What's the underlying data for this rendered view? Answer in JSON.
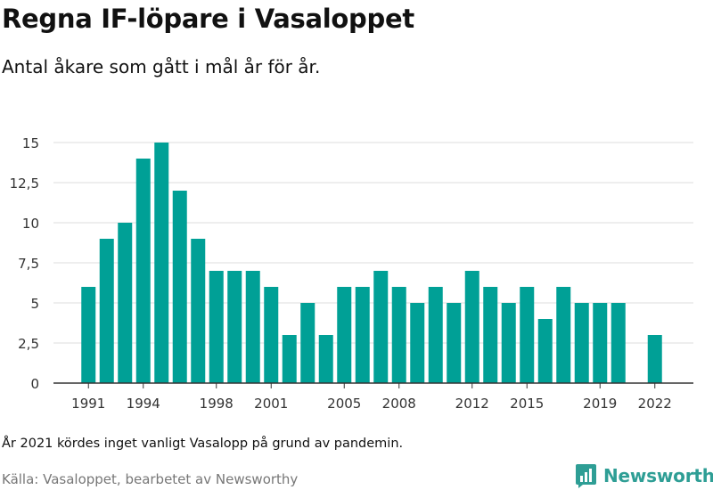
{
  "title": "Regna IF-löpare i Vasaloppet",
  "subtitle": "Antal åkare som gått i mål år för år.",
  "note": "År 2021 kördes inget vanligt Vasalopp på grund av pandemin.",
  "source": "Källa: Vasaloppet, bearbetet av Newsworthy",
  "brand": {
    "name": "Newsworthy",
    "icon": "newsworthy-logo-icon",
    "color": "#2e9e95"
  },
  "chart_data": {
    "type": "bar",
    "categories": [
      "1991",
      "1992",
      "1993",
      "1994",
      "1995",
      "1996",
      "1997",
      "1998",
      "1999",
      "2000",
      "2001",
      "2002",
      "2003",
      "2004",
      "2005",
      "2006",
      "2007",
      "2008",
      "2009",
      "2010",
      "2011",
      "2012",
      "2013",
      "2014",
      "2015",
      "2016",
      "2017",
      "2018",
      "2019",
      "2020",
      "2021",
      "2022"
    ],
    "values": [
      6,
      9,
      10,
      14,
      15,
      12,
      9,
      7,
      7,
      7,
      6,
      3,
      5,
      3,
      6,
      6,
      7,
      6,
      5,
      6,
      5,
      7,
      6,
      5,
      6,
      4,
      6,
      5,
      5,
      5,
      null,
      3
    ],
    "x_tick_labels": [
      "1991",
      "1994",
      "1998",
      "2001",
      "2005",
      "2008",
      "2012",
      "2015",
      "2019",
      "2022"
    ],
    "y_ticks": [
      0,
      2.5,
      5,
      7.5,
      10,
      12.5,
      15
    ],
    "y_tick_labels": [
      "0",
      "2,5",
      "5",
      "7,5",
      "10",
      "12,5",
      "15"
    ],
    "ylim": [
      0,
      15
    ],
    "xlabel": "",
    "ylabel": "",
    "grid": true,
    "bar_color": "#00a096",
    "grid_color": "#dddddd",
    "axis_color": "#333333"
  }
}
